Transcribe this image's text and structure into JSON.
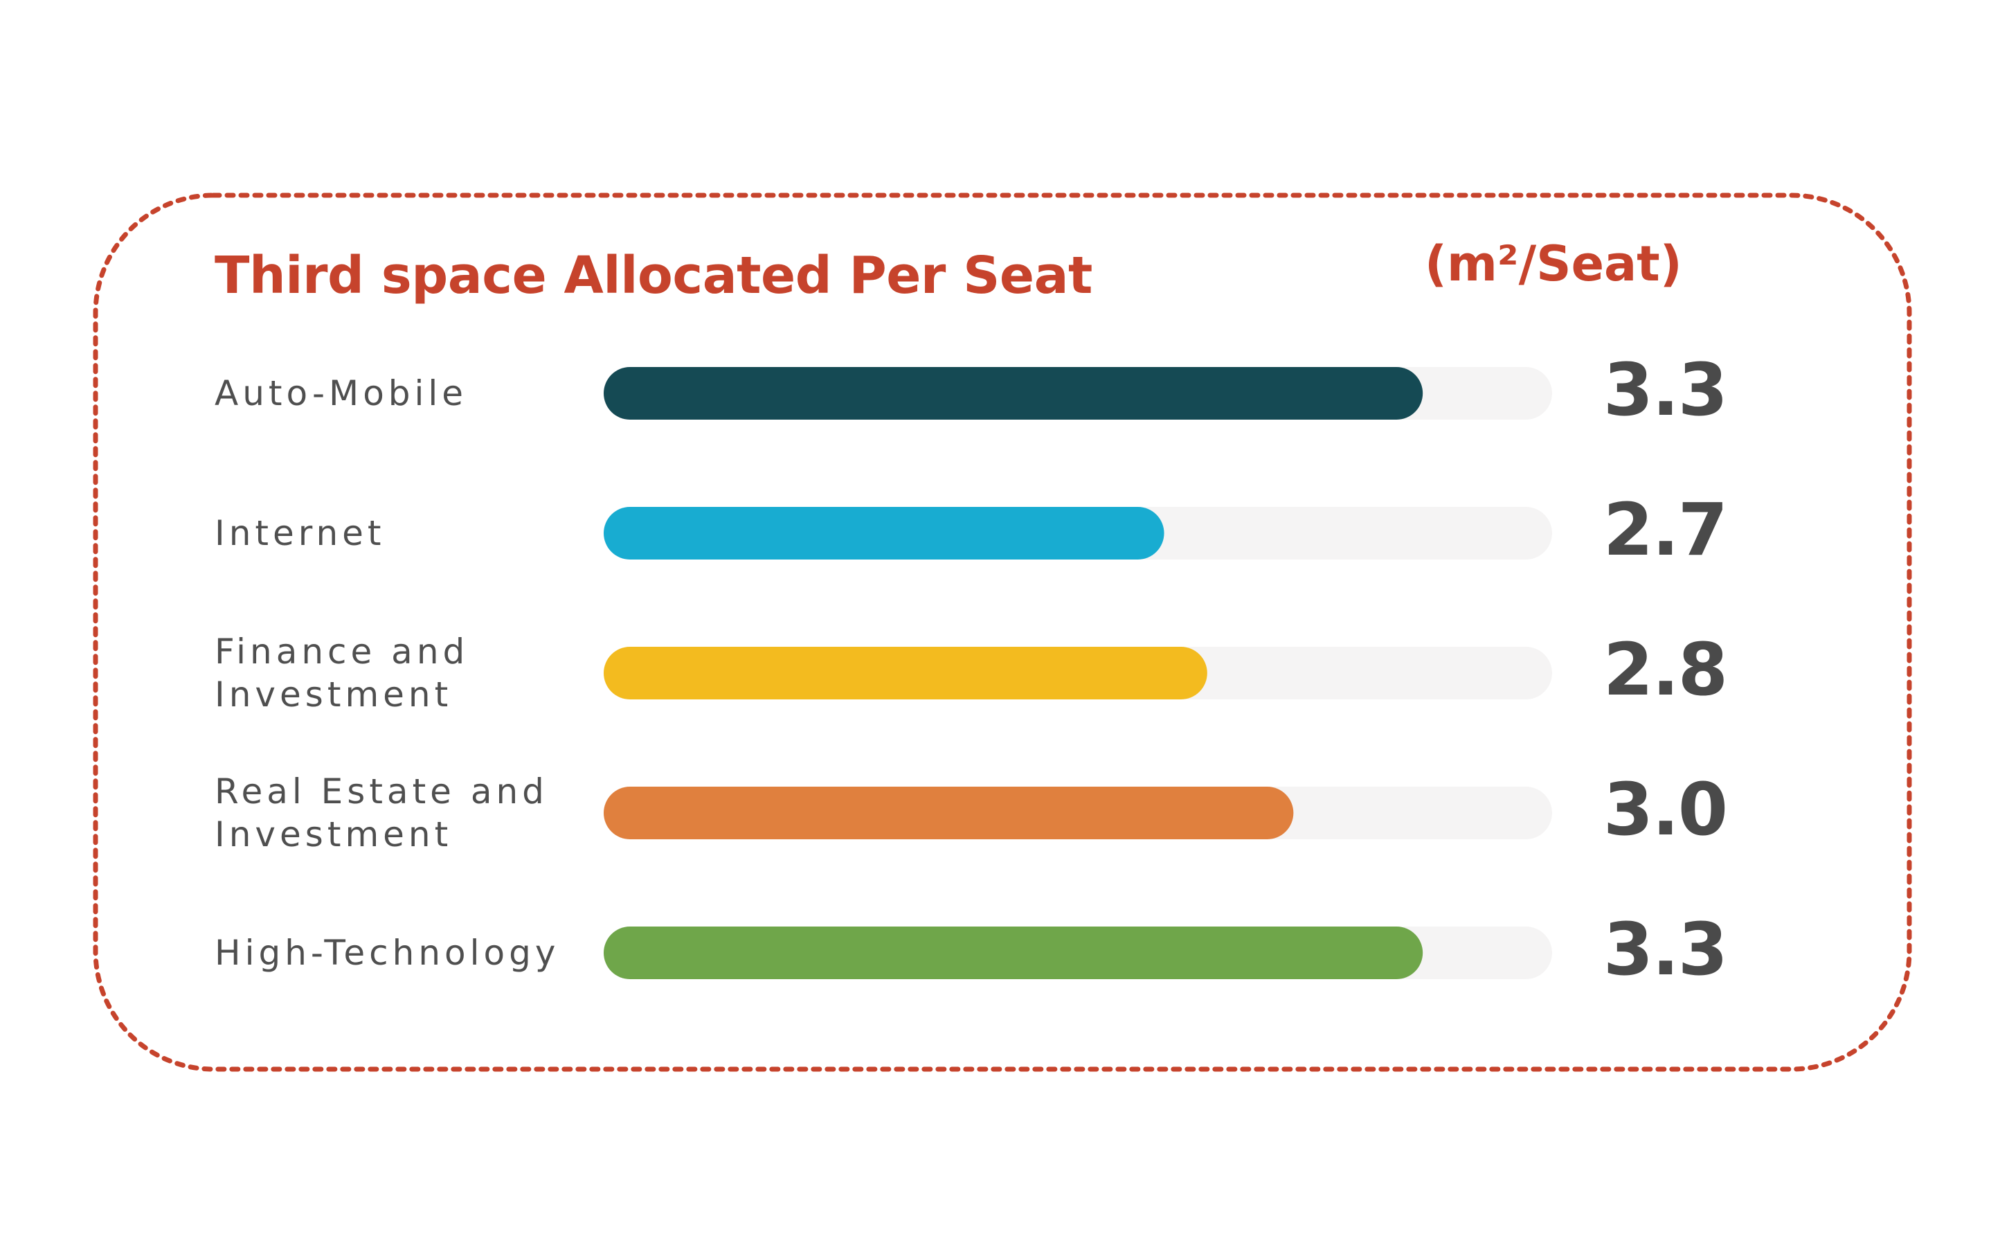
{
  "chart_data": {
    "type": "bar",
    "orientation": "horizontal",
    "title": "Third space Allocated Per Seat",
    "unit": "(m²/Seat)",
    "categories": [
      "Auto-Mobile",
      "Internet",
      "Finance and Investment",
      "Real Estate and Investment",
      "High-Technology"
    ],
    "values": [
      3.3,
      2.7,
      2.8,
      3.0,
      3.3
    ],
    "value_labels": [
      "3.3",
      "2.7",
      "2.8",
      "3.0",
      "3.3"
    ],
    "xlim": [
      1.4,
      3.6
    ],
    "grid": false,
    "legend": "none"
  },
  "colors": {
    "accent": "#c6432c",
    "track": "#f5f4f4",
    "bars": [
      "#154a54",
      "#18acd1",
      "#f3bb1f",
      "#e0803e",
      "#6fa64a"
    ]
  }
}
